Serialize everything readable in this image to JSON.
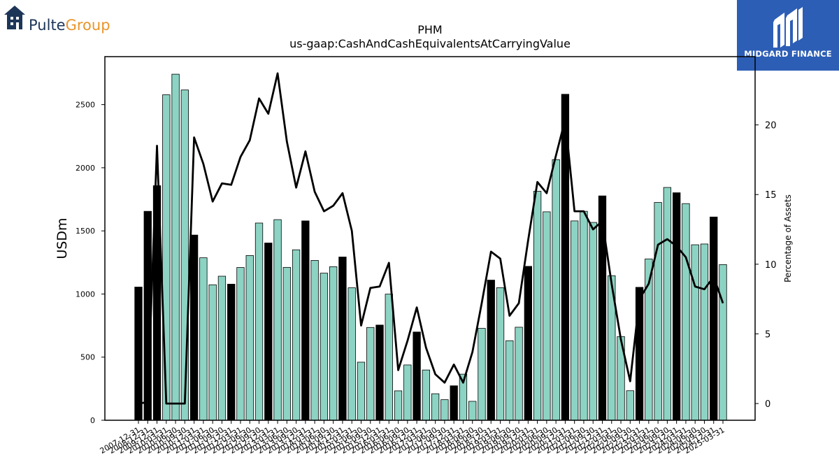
{
  "branding": {
    "company_logo_part1": "Pulte",
    "company_logo_part2": "Group",
    "publisher_logo": "MIDGARD FINANCE",
    "company_color_primary": "#1d3557",
    "company_color_accent": "#e8952b",
    "publisher_color": "#2d5eb6"
  },
  "chart_data": {
    "type": "bar",
    "title": "PHM",
    "subtitle": "us-gaap:CashAndCashEquivalentsAtCarryingValue",
    "ylabel": "USDm",
    "y2label": "Percentage of Assets",
    "ylim": [
      0,
      2880
    ],
    "y2lim": [
      -1.2,
      24.9
    ],
    "yticks": [
      0,
      500,
      1000,
      1500,
      2000,
      2500
    ],
    "y2ticks": [
      0,
      5,
      10,
      15,
      20
    ],
    "grid": false,
    "bar_colors": {
      "fiscal_year_end": "#000000",
      "quarter": "#8dd3c3"
    },
    "line_color": "#000000",
    "categories": [
      "2007-12-31",
      "2008-12-31",
      "2009-12-31",
      "2010-03-31",
      "2010-06-30",
      "2010-09-30",
      "2010-12-31",
      "2011-03-31",
      "2011-06-30",
      "2011-09-30",
      "2011-12-31",
      "2012-03-31",
      "2012-06-30",
      "2012-09-30",
      "2012-12-31",
      "2013-03-31",
      "2013-06-30",
      "2013-09-30",
      "2013-12-31",
      "2014-03-31",
      "2014-06-30",
      "2014-09-30",
      "2014-12-31",
      "2015-03-31",
      "2015-06-30",
      "2015-09-30",
      "2015-12-31",
      "2016-03-31",
      "2016-06-30",
      "2016-09-30",
      "2016-12-31",
      "2017-03-31",
      "2017-06-30",
      "2017-09-30",
      "2017-12-31",
      "2018-03-31",
      "2018-06-30",
      "2018-09-30",
      "2018-12-31",
      "2019-03-31",
      "2019-06-30",
      "2019-09-30",
      "2019-12-31",
      "2020-03-31",
      "2020-06-30",
      "2020-09-30",
      "2020-12-31",
      "2021-03-31",
      "2021-06-30",
      "2021-09-30",
      "2021-12-31",
      "2022-03-31",
      "2022-06-30",
      "2022-09-30",
      "2022-12-31",
      "2023-03-31",
      "2023-06-30",
      "2023-09-30",
      "2023-12-31",
      "2024-03-31",
      "2024-06-30",
      "2024-09-30",
      "2024-12-31",
      "2025-03-31"
    ],
    "values": [
      1055,
      1655,
      1858,
      2578,
      2741,
      2616,
      1467,
      1287,
      1073,
      1141,
      1078,
      1210,
      1305,
      1562,
      1404,
      1589,
      1211,
      1350,
      1579,
      1266,
      1165,
      1216,
      1293,
      1049,
      460,
      735,
      754,
      999,
      233,
      438,
      699,
      398,
      210,
      163,
      273,
      365,
      150,
      728,
      1110,
      1050,
      630,
      737,
      1219,
      1814,
      1651,
      2064,
      2582,
      1579,
      1655,
      1567,
      1777,
      1145,
      663,
      234,
      1053,
      1278,
      1725,
      1844,
      1802,
      1716,
      1390,
      1396,
      1610,
      1233
    ],
    "annual_flags": [
      1,
      1,
      1,
      0,
      0,
      0,
      1,
      0,
      0,
      0,
      1,
      0,
      0,
      0,
      1,
      0,
      0,
      0,
      1,
      0,
      0,
      0,
      1,
      0,
      0,
      0,
      1,
      0,
      0,
      0,
      1,
      0,
      0,
      0,
      1,
      0,
      0,
      0,
      1,
      0,
      0,
      0,
      1,
      0,
      0,
      0,
      1,
      0,
      0,
      0,
      1,
      0,
      0,
      0,
      1,
      0,
      0,
      0,
      1,
      0,
      0,
      0,
      1,
      0
    ],
    "pct_of_assets": [
      0.0,
      0.1,
      18.5,
      0.0,
      0.0,
      0.0,
      19.1,
      17.2,
      14.5,
      15.8,
      15.7,
      17.7,
      18.9,
      21.9,
      20.8,
      23.7,
      18.8,
      15.5,
      18.1,
      15.2,
      13.8,
      14.2,
      15.1,
      12.4,
      5.6,
      8.3,
      8.4,
      10.1,
      2.4,
      4.5,
      6.9,
      4.0,
      2.1,
      1.5,
      2.8,
      1.5,
      3.7,
      7.2,
      10.9,
      10.4,
      6.3,
      7.2,
      11.7,
      15.9,
      15.1,
      17.8,
      20.4,
      13.8,
      13.8,
      12.5,
      13.1,
      8.6,
      4.6,
      1.6,
      7.5,
      8.6,
      11.4,
      11.8,
      11.3,
      10.5,
      8.4,
      8.2,
      9.1,
      7.2
    ]
  }
}
